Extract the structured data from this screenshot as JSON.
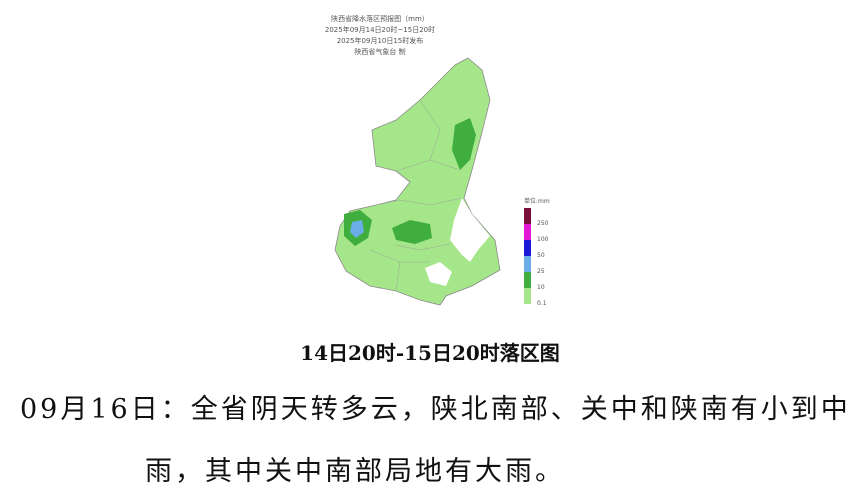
{
  "map": {
    "title": "陕西省降水落区预报图（mm）",
    "period": "2025年09月14日20时~15日20时",
    "issued": "2025年09月10日15时发布",
    "issuer": "陕西省气象台 制",
    "legend": {
      "unit": "单位:mm",
      "items": [
        {
          "label": "250",
          "color": "#7a0f3a"
        },
        {
          "label": "100",
          "color": "#e21ad6"
        },
        {
          "label": "50",
          "color": "#1a1ad6"
        },
        {
          "label": "25",
          "color": "#6aaee8"
        },
        {
          "label": "10",
          "color": "#3fae3f"
        },
        {
          "label": "0.1",
          "color": "#a6e68a"
        }
      ]
    },
    "colors": {
      "light_rain": "#a6e68a",
      "moderate_rain": "#3fae3f",
      "heavy_rain": "#6aaee8",
      "none": "#ffffff"
    }
  },
  "caption": "14日20时-15日20时落区图",
  "forecast": {
    "line1": "09月16日：全省阴天转多云，陕北南部、关中和陕南有小到中",
    "line2": "雨，其中关中南部局地有大雨。"
  }
}
